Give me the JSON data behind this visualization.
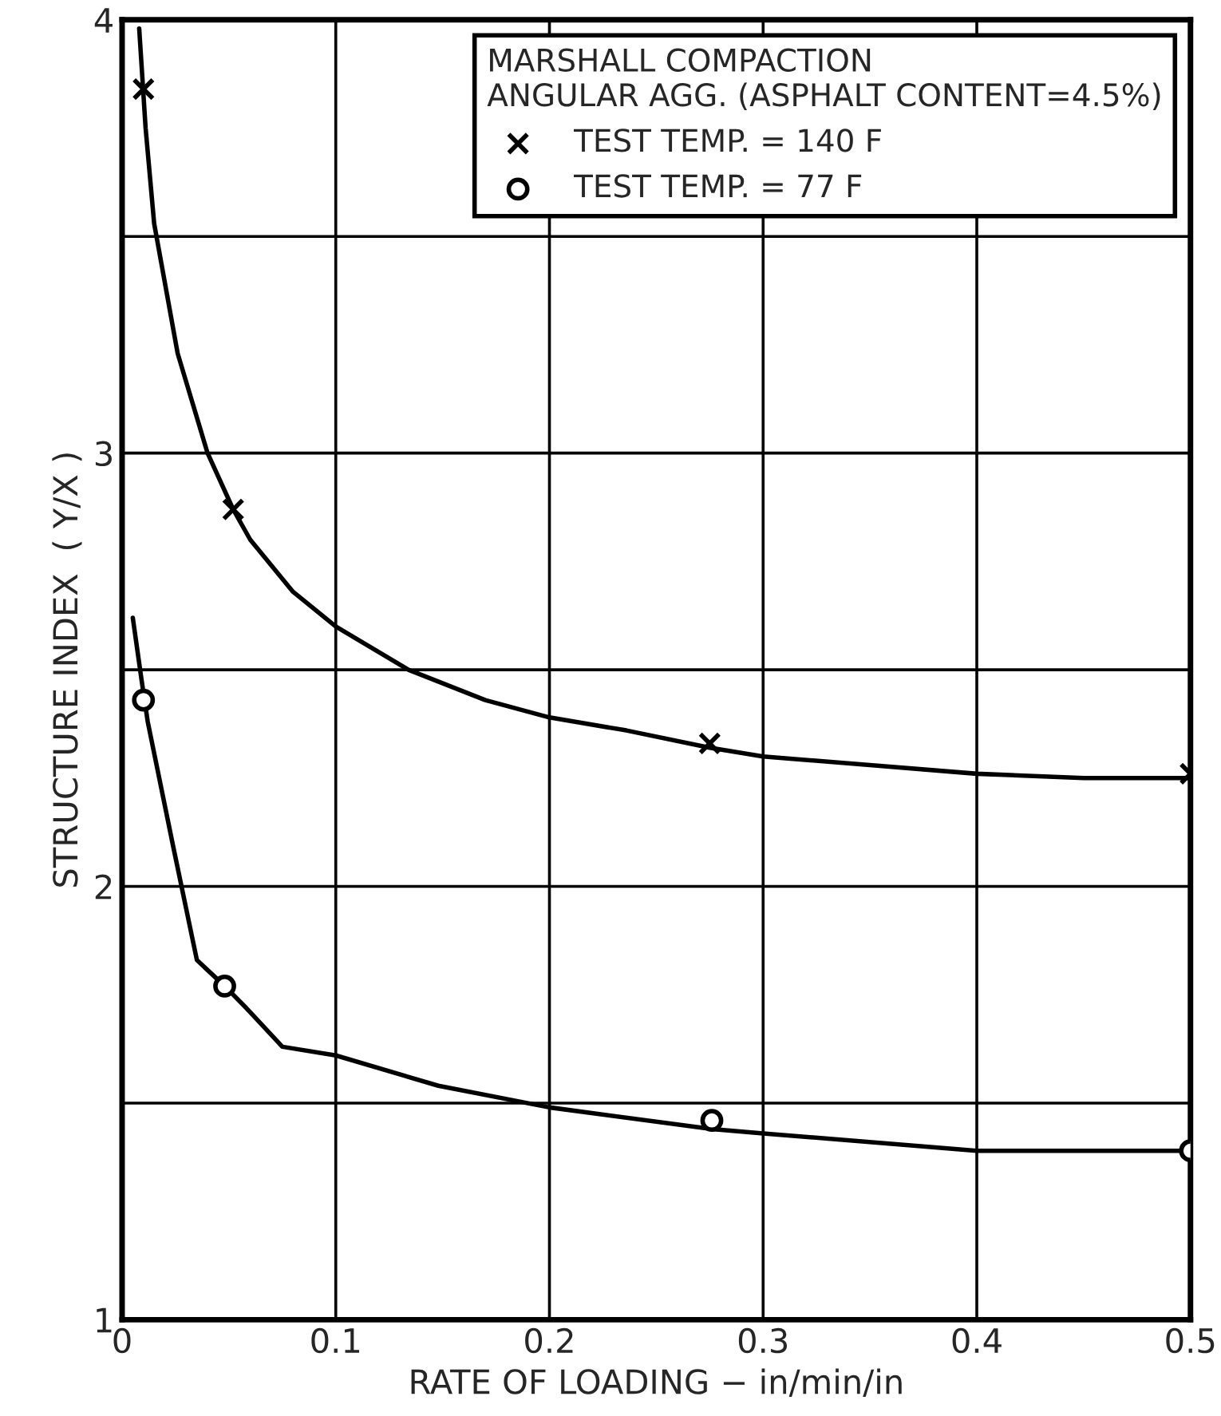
{
  "chart_data": {
    "type": "line",
    "xlabel": "RATE OF LOADING − in/min/in",
    "ylabel": "STRUCTURE INDEX  ( Y/X )",
    "legend_title": "MARSHALL COMPACTION\nANGULAR AGG. (ASPHALT CONTENT=4.5%)",
    "legend": "top right",
    "grid": true,
    "xlim": [
      0,
      0.5
    ],
    "xticks": [
      0,
      0.1,
      0.2,
      0.3,
      0.4,
      0.5
    ],
    "ylim": [
      1,
      4
    ],
    "yticks": [
      1,
      {
        "value": 1.5,
        "label": null
      },
      2,
      {
        "value": 2.5,
        "label": null
      },
      3,
      {
        "value": 3.5,
        "label": null
      },
      4
    ],
    "series": [
      {
        "name": "TEST TEMP. = 140 F",
        "type": "scatter",
        "marker": "cross",
        "color": "#000000",
        "x": [
          0.01,
          0.052,
          0.275,
          0.5
        ],
        "values": [
          3.84,
          2.87,
          2.33,
          2.26
        ]
      },
      {
        "name": "TEST TEMP. = 77 F",
        "type": "scatter",
        "marker": "circle",
        "color": "#000000",
        "x": [
          0.01,
          0.048,
          0.276,
          0.5
        ],
        "values": [
          2.43,
          1.77,
          1.46,
          1.39
        ]
      },
      {
        "color": "#000000",
        "x": [
          0.008,
          0.011,
          0.015,
          0.026,
          0.04,
          0.052,
          0.06,
          0.08,
          0.1,
          0.134,
          0.17,
          0.2,
          0.236,
          0.275,
          0.3,
          0.35,
          0.4,
          0.45,
          0.5
        ],
        "values": [
          3.98,
          3.75,
          3.53,
          3.23,
          3.0,
          2.87,
          2.8,
          2.68,
          2.6,
          2.5,
          2.43,
          2.39,
          2.36,
          2.32,
          2.3,
          2.28,
          2.26,
          2.25,
          2.25
        ]
      },
      {
        "color": "#000000",
        "x": [
          0.005,
          0.009,
          0.012,
          0.024,
          0.035,
          0.048,
          0.058,
          0.075,
          0.1,
          0.148,
          0.2,
          0.276,
          0.3,
          0.4,
          0.5
        ],
        "values": [
          2.62,
          2.48,
          2.38,
          2.09,
          1.83,
          1.77,
          1.72,
          1.63,
          1.61,
          1.54,
          1.49,
          1.44,
          1.43,
          1.39,
          1.39
        ]
      }
    ]
  }
}
